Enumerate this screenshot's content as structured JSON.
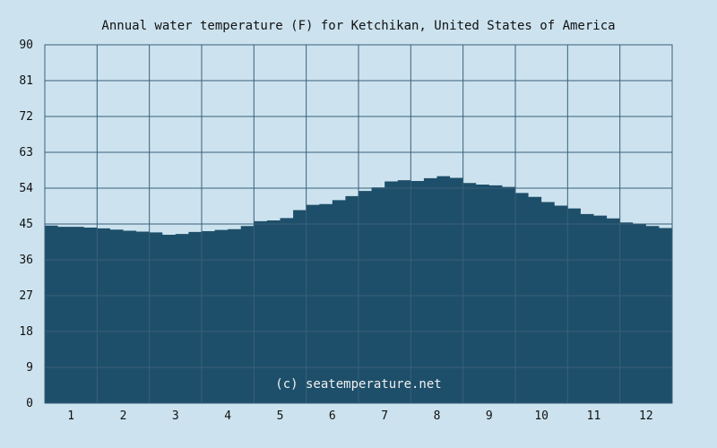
{
  "chart_data": {
    "type": "area",
    "title": "Annual water temperature (F) for Ketchikan, United States of America",
    "watermark": "(c) seatemperature.net",
    "xlabel": "",
    "ylabel": "",
    "ylim": [
      0,
      90
    ],
    "xlim": [
      0.5,
      12.5
    ],
    "yticks": [
      "0",
      "9",
      "18",
      "27",
      "36",
      "45",
      "54",
      "63",
      "72",
      "81",
      "90"
    ],
    "xticks": [
      "1",
      "2",
      "3",
      "4",
      "5",
      "6",
      "7",
      "8",
      "9",
      "10",
      "11",
      "12"
    ],
    "grid": true,
    "legend": "none",
    "colors": {
      "background": "#cce3ef",
      "area": "#1e4f6a",
      "grid": "#3a5f78"
    },
    "series": [
      {
        "x": [
          0.5,
          0.75,
          1.0,
          1.25,
          1.5,
          1.75,
          2.0,
          2.25,
          2.5,
          2.75,
          3.0,
          3.25,
          3.5,
          3.75,
          4.0,
          4.25,
          4.5,
          4.75,
          5.0,
          5.25,
          5.5,
          5.75,
          6.0,
          6.25,
          6.5,
          6.75,
          7.0,
          7.25,
          7.5,
          7.75,
          8.0,
          8.25,
          8.5,
          8.75,
          9.0,
          9.25,
          9.5,
          9.75,
          10.0,
          10.25,
          10.5,
          10.75,
          11.0,
          11.25,
          11.5,
          11.75,
          12.0,
          12.25,
          12.5
        ],
        "values": [
          44.6,
          44.3,
          44.3,
          44.1,
          43.9,
          43.6,
          43.3,
          43.1,
          42.9,
          42.3,
          42.5,
          43.0,
          43.2,
          43.5,
          43.7,
          44.5,
          45.7,
          45.9,
          46.5,
          48.5,
          49.8,
          50.0,
          51.0,
          52.0,
          53.3,
          54.2,
          55.7,
          56.0,
          55.8,
          56.5,
          57.0,
          56.6,
          55.3,
          54.9,
          54.7,
          54.3,
          52.8,
          51.8,
          50.5,
          49.6,
          48.9,
          47.5,
          47.1,
          46.4,
          45.4,
          44.9,
          44.5,
          44.0,
          43.5
        ]
      }
    ]
  }
}
